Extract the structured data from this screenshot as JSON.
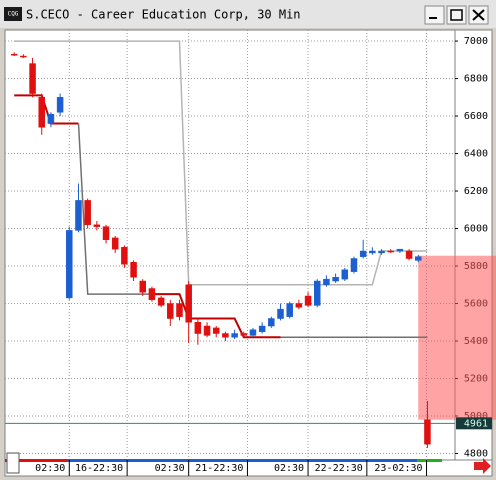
{
  "chart_data": {
    "type": "candlestick",
    "title": "S.CECO - Career Education Corp, 30 Min",
    "icon_label": "CQG",
    "open": [
      6930,
      6920,
      6880,
      6700,
      6560,
      6620,
      5630,
      5990,
      6150,
      6020,
      6010,
      5950,
      5900,
      5820,
      5720,
      5680,
      5630,
      5600,
      5600,
      5700,
      5500,
      5480,
      5470,
      5440,
      5420,
      5440,
      5430,
      5450,
      5480,
      5520,
      5530,
      5600,
      5640,
      5590,
      5700,
      5720,
      5730,
      5770,
      5850,
      5870,
      5870,
      5880,
      5880,
      5880,
      5830,
      4980
    ],
    "high": [
      6940,
      6930,
      6910,
      6720,
      6620,
      6720,
      6010,
      6240,
      6160,
      6040,
      6020,
      5960,
      5910,
      5830,
      5730,
      5690,
      5640,
      5620,
      5620,
      5720,
      5520,
      5500,
      5480,
      5450,
      5460,
      5450,
      5470,
      5500,
      5530,
      5600,
      5610,
      5620,
      5660,
      5730,
      5750,
      5760,
      5790,
      5850,
      5940,
      5900,
      5890,
      5890,
      5890,
      5890,
      5860,
      5080
    ],
    "low": [
      6920,
      6910,
      6700,
      6500,
      6540,
      6600,
      5620,
      5980,
      6000,
      5990,
      5920,
      5870,
      5790,
      5720,
      5640,
      5610,
      5580,
      5480,
      5510,
      5390,
      5380,
      5420,
      5420,
      5400,
      5410,
      5420,
      5420,
      5440,
      5470,
      5510,
      5520,
      5570,
      5580,
      5580,
      5690,
      5710,
      5720,
      5760,
      5840,
      5860,
      5860,
      5870,
      5870,
      5830,
      5820,
      4830
    ],
    "close": [
      6925,
      6915,
      6720,
      6540,
      6610,
      6700,
      5990,
      6150,
      6020,
      6010,
      5940,
      5890,
      5810,
      5740,
      5660,
      5620,
      5590,
      5520,
      5530,
      5500,
      5440,
      5430,
      5440,
      5420,
      5440,
      5430,
      5460,
      5480,
      5520,
      5570,
      5600,
      5580,
      5590,
      5720,
      5730,
      5740,
      5780,
      5840,
      5880,
      5880,
      5880,
      5880,
      5890,
      5840,
      5850,
      4850
    ],
    "up_color": "#1c5fd0",
    "down_color": "#e01010",
    "series": [
      {
        "color": "#c00000",
        "values": [
          6710,
          6710,
          6710,
          6710,
          6560,
          6560,
          6560,
          6560,
          null,
          null,
          null,
          null,
          null,
          null,
          null,
          5650,
          5650,
          5650,
          5650,
          5520,
          5520,
          5520,
          5520,
          5520,
          5520,
          5420,
          5420,
          5420,
          5420,
          5420,
          null,
          null,
          null,
          null,
          null,
          null,
          null,
          null,
          null,
          null,
          null,
          null,
          null,
          null,
          null,
          null
        ]
      },
      {
        "color": "#707070",
        "values": [
          null,
          null,
          null,
          null,
          null,
          null,
          null,
          6560,
          5650,
          5650,
          5650,
          5650,
          5650,
          5650,
          5650,
          5650,
          null,
          null,
          null,
          null,
          null,
          null,
          null,
          null,
          null,
          null,
          null,
          null,
          null,
          5420,
          5420,
          5420,
          5420,
          5420,
          5420,
          5420,
          5420,
          5420,
          5420,
          5420,
          5420,
          5420,
          5420,
          5420,
          5420,
          5420
        ]
      },
      {
        "color": "#b4b4b4",
        "values": [
          7000,
          7000,
          7000,
          7000,
          7000,
          7000,
          7000,
          7000,
          7000,
          7000,
          7000,
          7000,
          7000,
          7000,
          7000,
          7000,
          7000,
          7000,
          7000,
          5700,
          5700,
          5700,
          5700,
          5700,
          5700,
          5700,
          5700,
          5700,
          5700,
          5700,
          5700,
          5700,
          5700,
          5700,
          5700,
          5700,
          5700,
          5700,
          5700,
          5700,
          5880,
          5880,
          5880,
          5880,
          5880,
          5880
        ]
      }
    ],
    "ylim": [
      4776,
      7059
    ],
    "yticks": [
      4800,
      5000,
      5200,
      5400,
      5600,
      5800,
      6000,
      6200,
      6400,
      6600,
      6800,
      7000
    ],
    "xlim": [
      -1,
      48
    ],
    "xticks": [
      {
        "value": 6,
        "label": "02:30"
      },
      {
        "value": 12.3,
        "label": "16-22:30"
      },
      {
        "value": 19,
        "label": "02:30"
      },
      {
        "value": 25.4,
        "label": "21-22:30"
      },
      {
        "value": 32,
        "label": "02:30"
      },
      {
        "value": 38.4,
        "label": "22-22:30"
      },
      {
        "value": 44.9,
        "label": "23-02:30"
      }
    ],
    "last_price": 4961,
    "zone": {
      "x": 44,
      "ylim": [
        4980,
        5855
      ],
      "color": "rgba(255,90,90,0.55)"
    },
    "grid": true
  }
}
